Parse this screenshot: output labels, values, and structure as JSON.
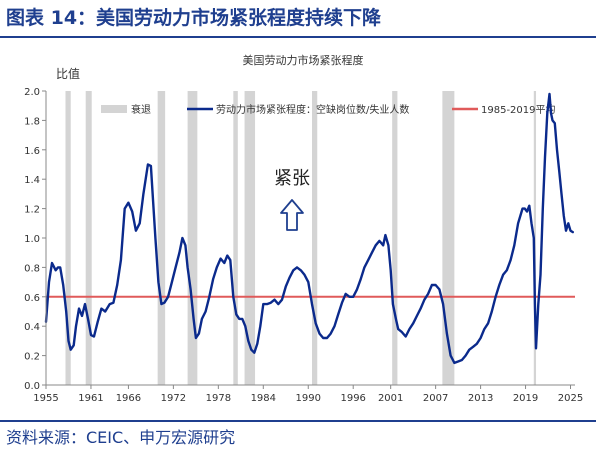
{
  "figure_title": "图表 14：美国劳动力市场紧张程度持续下降",
  "source_note": "资料来源：CEIC、申万宏源研究",
  "colors": {
    "brand": "#1f3f8f",
    "series": "#0b2a8c",
    "reference": "#e05a5a",
    "recession": "#d4d4d4"
  },
  "chart_data": {
    "type": "line",
    "title": "美国劳动力市场紧张程度",
    "ylabel": "比值",
    "xlabel": "",
    "annotation": "紧张",
    "annotation_arrow": "up",
    "ylim": [
      0.0,
      2.0
    ],
    "yticks": [
      "0.0",
      "0.2",
      "0.4",
      "0.6",
      "0.8",
      "1.0",
      "1.2",
      "1.4",
      "1.6",
      "1.8",
      "2.0"
    ],
    "xlim": [
      1955,
      2025.6
    ],
    "xticks": [
      "1955",
      "1961",
      "1966",
      "1972",
      "1978",
      "1984",
      "1990",
      "1996",
      "2001",
      "2007",
      "2013",
      "2019",
      "2025"
    ],
    "grid": false,
    "legend_position": "top",
    "legend": [
      "衰退",
      "劳动力市场紧张程度：空缺岗位数/失业人数",
      "1985-2019平均"
    ],
    "recessions": [
      [
        1957.6,
        1958.3
      ],
      [
        1960.3,
        1961.1
      ],
      [
        1969.9,
        1970.9
      ],
      [
        1973.9,
        1975.2
      ],
      [
        1980.0,
        1980.6
      ],
      [
        1981.5,
        1982.9
      ],
      [
        1990.5,
        1991.2
      ],
      [
        2001.2,
        2001.9
      ],
      [
        2007.9,
        2009.5
      ],
      [
        2020.1,
        2020.4
      ]
    ],
    "reference": {
      "name": "1985-2019平均",
      "value": 0.6
    },
    "series": [
      {
        "name": "劳动力市场紧张程度：空缺岗位数/失业人数",
        "x": [
          1955.0,
          1955.4,
          1955.8,
          1956.3,
          1956.6,
          1956.9,
          1957.3,
          1957.7,
          1958.0,
          1958.3,
          1958.7,
          1959.0,
          1959.4,
          1959.8,
          1960.2,
          1960.6,
          1961.0,
          1961.4,
          1961.9,
          1962.4,
          1962.9,
          1963.5,
          1964.0,
          1964.5,
          1965.0,
          1965.5,
          1966.0,
          1966.5,
          1967.0,
          1967.5,
          1968.0,
          1968.6,
          1969.0,
          1969.3,
          1969.6,
          1970.0,
          1970.4,
          1970.8,
          1971.3,
          1971.8,
          1972.3,
          1972.8,
          1973.2,
          1973.6,
          1973.9,
          1974.3,
          1974.7,
          1975.0,
          1975.4,
          1975.8,
          1976.3,
          1976.8,
          1977.3,
          1977.8,
          1978.3,
          1978.8,
          1979.2,
          1979.6,
          1980.0,
          1980.4,
          1980.8,
          1981.2,
          1981.6,
          1982.0,
          1982.4,
          1982.8,
          1983.2,
          1983.6,
          1984.0,
          1984.5,
          1985.0,
          1985.5,
          1986.0,
          1986.5,
          1987.0,
          1987.5,
          1988.0,
          1988.5,
          1989.0,
          1989.5,
          1990.0,
          1990.5,
          1991.0,
          1991.5,
          1992.0,
          1992.5,
          1993.0,
          1993.5,
          1994.0,
          1994.5,
          1995.0,
          1995.5,
          1996.0,
          1996.5,
          1997.0,
          1997.5,
          1998.0,
          1998.5,
          1999.0,
          1999.5,
          2000.0,
          2000.3,
          2000.7,
          2001.0,
          2001.3,
          2001.7,
          2002.0,
          2002.5,
          2003.0,
          2003.5,
          2004.0,
          2004.5,
          2005.0,
          2005.5,
          2006.0,
          2006.5,
          2007.0,
          2007.5,
          2008.0,
          2008.5,
          2009.0,
          2009.5,
          2010.0,
          2010.5,
          2011.0,
          2011.5,
          2012.0,
          2012.5,
          2013.0,
          2013.5,
          2014.0,
          2014.5,
          2015.0,
          2015.5,
          2016.0,
          2016.5,
          2017.0,
          2017.5,
          2018.0,
          2018.3,
          2018.6,
          2018.9,
          2019.2,
          2019.5,
          2019.8,
          2020.1,
          2020.25,
          2020.4,
          2020.7,
          2021.0,
          2021.3,
          2021.6,
          2021.9,
          2022.2,
          2022.4,
          2022.6,
          2022.9,
          2023.2,
          2023.5,
          2023.8,
          2024.1,
          2024.4,
          2024.7,
          2025.0,
          2025.3
        ],
        "values": [
          0.43,
          0.7,
          0.83,
          0.78,
          0.8,
          0.8,
          0.68,
          0.5,
          0.3,
          0.24,
          0.27,
          0.4,
          0.52,
          0.47,
          0.55,
          0.45,
          0.34,
          0.33,
          0.43,
          0.52,
          0.5,
          0.55,
          0.56,
          0.68,
          0.85,
          1.2,
          1.24,
          1.18,
          1.05,
          1.1,
          1.3,
          1.5,
          1.49,
          1.25,
          1.0,
          0.7,
          0.55,
          0.56,
          0.6,
          0.7,
          0.8,
          0.9,
          1.0,
          0.95,
          0.8,
          0.65,
          0.45,
          0.32,
          0.35,
          0.45,
          0.5,
          0.6,
          0.72,
          0.8,
          0.86,
          0.83,
          0.88,
          0.85,
          0.6,
          0.48,
          0.45,
          0.45,
          0.4,
          0.3,
          0.24,
          0.22,
          0.28,
          0.4,
          0.55,
          0.55,
          0.56,
          0.58,
          0.55,
          0.58,
          0.67,
          0.73,
          0.78,
          0.8,
          0.78,
          0.75,
          0.7,
          0.55,
          0.42,
          0.35,
          0.32,
          0.32,
          0.35,
          0.4,
          0.48,
          0.56,
          0.62,
          0.6,
          0.6,
          0.65,
          0.72,
          0.8,
          0.85,
          0.9,
          0.95,
          0.98,
          0.95,
          1.02,
          0.95,
          0.78,
          0.55,
          0.45,
          0.38,
          0.36,
          0.33,
          0.38,
          0.42,
          0.47,
          0.52,
          0.58,
          0.62,
          0.68,
          0.68,
          0.65,
          0.55,
          0.35,
          0.2,
          0.15,
          0.16,
          0.17,
          0.2,
          0.24,
          0.26,
          0.28,
          0.32,
          0.38,
          0.42,
          0.5,
          0.6,
          0.68,
          0.75,
          0.78,
          0.85,
          0.95,
          1.1,
          1.15,
          1.2,
          1.2,
          1.18,
          1.22,
          1.1,
          1.0,
          0.55,
          0.25,
          0.55,
          0.75,
          1.2,
          1.55,
          1.85,
          1.98,
          1.85,
          1.8,
          1.78,
          1.6,
          1.45,
          1.3,
          1.15,
          1.05,
          1.1,
          1.05,
          1.04
        ]
      }
    ]
  }
}
